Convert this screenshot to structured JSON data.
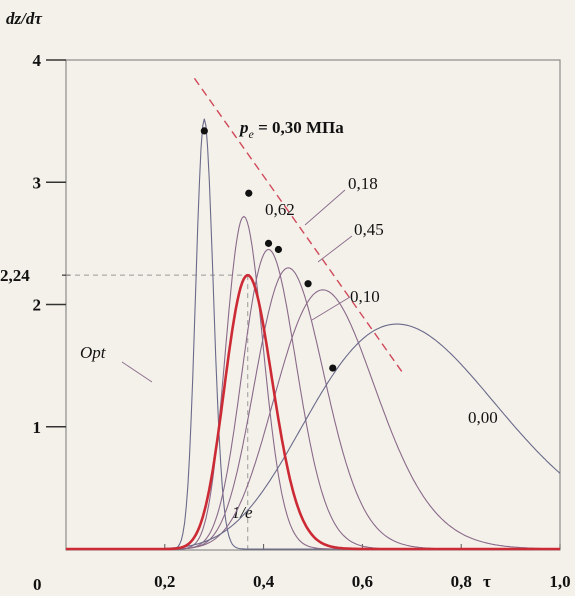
{
  "chart_data": {
    "type": "line",
    "xlabel": "τ",
    "ylabel": "dz/dτ",
    "xlim": [
      0,
      1
    ],
    "ylim": [
      0,
      4
    ],
    "x_ticks": [
      {
        "value": 0.2,
        "label": "0,2"
      },
      {
        "value": 0.4,
        "label": "0,4"
      },
      {
        "value": 0.6,
        "label": "0,6"
      },
      {
        "value": 0.8,
        "label": "0,8"
      },
      {
        "value": 1.0,
        "label": "1,0"
      }
    ],
    "origin_label": "0",
    "y_ticks": [
      {
        "value": 1,
        "label": "1"
      },
      {
        "value": 2,
        "label": "2"
      },
      {
        "value": 2.24,
        "label": "2,24"
      },
      {
        "value": 3,
        "label": "3"
      },
      {
        "value": 4,
        "label": "4"
      }
    ],
    "reference_lines": {
      "h_value": 2.24,
      "v_value": 0.3679,
      "v_label": "1/e"
    },
    "series": [
      {
        "name": "0,30",
        "peak_x": 0.28,
        "peak_y": 3.52,
        "color": "#6a6a8a"
      },
      {
        "name": "0,62",
        "peak_x": 0.36,
        "peak_y": 2.72,
        "color": "#8a6a8a"
      },
      {
        "name": "0,18",
        "peak_x": 0.41,
        "peak_y": 2.45,
        "color": "#8a6a8a"
      },
      {
        "name": "0,45",
        "peak_x": 0.45,
        "peak_y": 2.3,
        "color": "#8a6a8a"
      },
      {
        "name": "0,10",
        "peak_x": 0.52,
        "peak_y": 2.12,
        "color": "#8a6a8a"
      },
      {
        "name": "0,00",
        "peak_x": 0.67,
        "peak_y": 1.84,
        "color": "#6a6a8a"
      },
      {
        "name": "Opt",
        "peak_x": 0.3679,
        "peak_y": 2.24,
        "color": "#cc2a35"
      }
    ],
    "locus_points": [
      {
        "x": 0.28,
        "y": 3.42
      },
      {
        "x": 0.37,
        "y": 2.91
      },
      {
        "x": 0.41,
        "y": 2.5
      },
      {
        "x": 0.43,
        "y": 2.45
      },
      {
        "x": 0.49,
        "y": 2.17
      },
      {
        "x": 0.54,
        "y": 1.48
      }
    ],
    "locus_line": [
      [
        0.26,
        3.85
      ],
      [
        0.68,
        1.45
      ]
    ],
    "labels": {
      "pe_symbol": "p",
      "pe_sub": "e",
      "pe_rest": " = 0,30  МПа",
      "l062": "0,62",
      "l018": "0,18",
      "l045": "0,45",
      "l010": "0,10",
      "l000": "0,00",
      "opt": "Opt"
    }
  }
}
